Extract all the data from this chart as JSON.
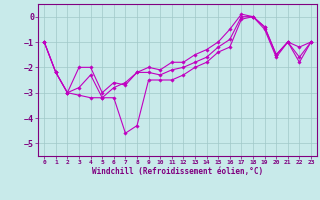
{
  "xlabel": "Windchill (Refroidissement éolien,°C)",
  "hours": [
    0,
    1,
    2,
    3,
    4,
    5,
    6,
    7,
    8,
    9,
    10,
    11,
    12,
    13,
    14,
    15,
    16,
    17,
    18,
    19,
    20,
    21,
    22,
    23
  ],
  "line1": [
    -1.0,
    -2.2,
    -3.0,
    -3.1,
    -3.2,
    -3.2,
    -3.2,
    -4.6,
    -4.3,
    -2.5,
    -2.5,
    -2.5,
    -2.3,
    -2.0,
    -1.8,
    -1.4,
    -1.2,
    -0.1,
    0.0,
    -0.5,
    -1.6,
    -1.0,
    -1.6,
    -1.0
  ],
  "line2": [
    -1.0,
    -2.2,
    -3.0,
    -2.8,
    -2.3,
    -3.2,
    -2.8,
    -2.6,
    -2.2,
    -2.2,
    -2.3,
    -2.1,
    -2.0,
    -1.8,
    -1.6,
    -1.2,
    -0.9,
    0.0,
    0.0,
    -0.4,
    -1.5,
    -1.0,
    -1.2,
    -1.0
  ],
  "line3": [
    -1.0,
    -2.2,
    -3.0,
    -2.0,
    -2.0,
    -3.0,
    -2.6,
    -2.7,
    -2.2,
    -2.0,
    -2.1,
    -1.8,
    -1.8,
    -1.5,
    -1.3,
    -1.0,
    -0.5,
    0.1,
    0.0,
    -0.4,
    -1.5,
    -1.0,
    -1.8,
    -1.0
  ],
  "color": "#c000c0",
  "bg_color": "#c8eaea",
  "grid_color": "#a0c8c8",
  "axis_color": "#800080",
  "ylim": [
    -5.5,
    0.5
  ],
  "xlim_min": -0.5,
  "xlim_max": 23.5,
  "yticks": [
    0,
    -1,
    -2,
    -3,
    -4,
    -5
  ],
  "xticks": [
    0,
    1,
    2,
    3,
    4,
    5,
    6,
    7,
    8,
    9,
    10,
    11,
    12,
    13,
    14,
    15,
    16,
    17,
    18,
    19,
    20,
    21,
    22,
    23
  ]
}
